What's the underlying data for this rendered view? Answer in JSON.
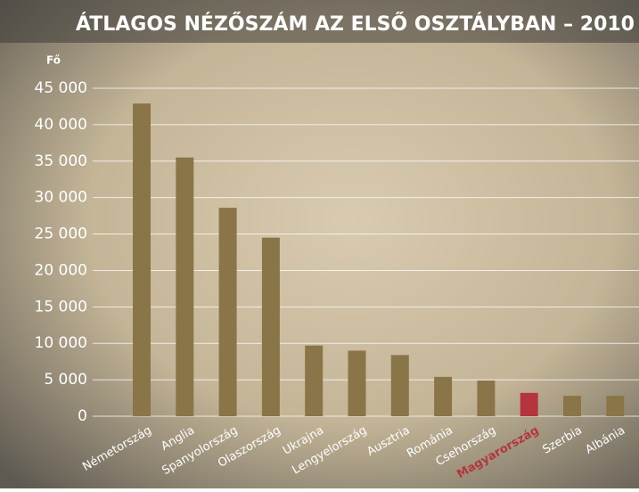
{
  "chart_data": {
    "type": "bar",
    "title": "ÁTLAGOS NÉZŐSZÁM AZ ELSŐ OSZTÁLYBAN – 2010",
    "y_label": "Fő",
    "categories": [
      "Németország",
      "Anglia",
      "Spanyolország",
      "Olaszország",
      "Ukrajna",
      "Lengyelország",
      "Ausztria",
      "Románia",
      "Csehország",
      "Magyarország",
      "Szerbia",
      "Albánia"
    ],
    "values": [
      42900,
      35500,
      28600,
      24500,
      9700,
      9000,
      8400,
      5400,
      4900,
      3200,
      2800,
      2800
    ],
    "colors": [
      "#8a7548",
      "#8a7548",
      "#8a7548",
      "#8a7548",
      "#8a7548",
      "#8a7548",
      "#8a7548",
      "#8a7548",
      "#8a7548",
      "#b5353f",
      "#8a7548",
      "#8a7548"
    ],
    "ylim": [
      0,
      45000
    ],
    "yticks": [
      0,
      {
        "value": 5000,
        "label": "5 000"
      },
      {
        "value": 10000,
        "label": "10 000"
      },
      {
        "value": 15000,
        "label": "15 000"
      },
      {
        "value": 20000,
        "label": "20 000"
      },
      {
        "value": 25000,
        "label": "25 000"
      },
      {
        "value": 30000,
        "label": "30 000"
      },
      {
        "value": 35000,
        "label": "35 000"
      },
      {
        "value": 40000,
        "label": "40 000"
      },
      {
        "value": 45000,
        "label": "45 000"
      }
    ],
    "grid": true
  }
}
